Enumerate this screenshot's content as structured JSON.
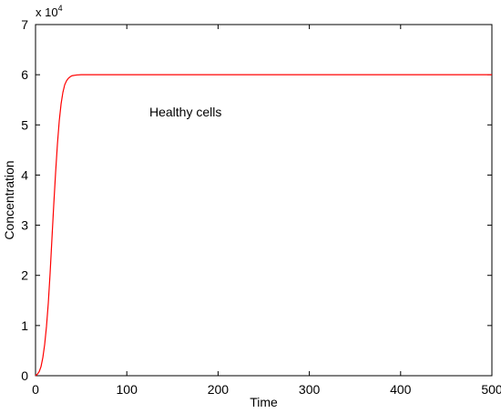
{
  "chart_data": {
    "type": "line",
    "xlabel": "Time",
    "ylabel": "Concentration",
    "scale_label_base": "x 10",
    "scale_label_exp": "4",
    "annotation": "Healthy cells",
    "xlim": [
      0,
      500
    ],
    "ylim": [
      0,
      7
    ],
    "xticks": [
      0,
      100,
      200,
      300,
      400,
      500
    ],
    "yticks": [
      0,
      1,
      2,
      3,
      4,
      5,
      6,
      7
    ],
    "xtick_labels": [
      "0",
      "100",
      "200",
      "300",
      "400",
      "500"
    ],
    "ytick_labels": [
      "0",
      "1",
      "2",
      "3",
      "4",
      "5",
      "6",
      "7"
    ],
    "grid": false,
    "series": [
      {
        "color": "#ff0000",
        "x": [
          0,
          2,
          4,
          6,
          8,
          10,
          12,
          14,
          16,
          18,
          20,
          22,
          24,
          26,
          28,
          30,
          32,
          34,
          36,
          38,
          40,
          45,
          50,
          60,
          80,
          100,
          150,
          200,
          300,
          400,
          500
        ],
        "y": [
          0.0,
          0.03,
          0.08,
          0.18,
          0.36,
          0.62,
          0.98,
          1.45,
          2.05,
          2.74,
          3.42,
          4.05,
          4.62,
          5.08,
          5.42,
          5.65,
          5.8,
          5.88,
          5.93,
          5.96,
          5.98,
          5.995,
          6.0,
          6.0,
          6.0,
          6.0,
          6.0,
          6.0,
          6.0,
          6.0,
          6.0
        ]
      }
    ]
  }
}
